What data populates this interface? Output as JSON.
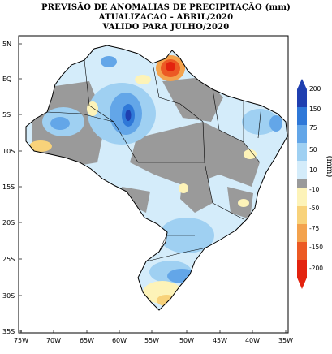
{
  "title": {
    "line1": "PREVISÃO DE ANOMALIAS DE PRECIPITAÇÃO (mm)",
    "line2": "ATUALIZACAO - ABRIL/2020",
    "line3": "VALIDO PARA JULHO/2020"
  },
  "axes": {
    "lat_labels": [
      "5N",
      "EQ",
      "5S",
      "10S",
      "15S",
      "20S",
      "25S",
      "30S",
      "35S"
    ],
    "lon_labels": [
      "75W",
      "70W",
      "65W",
      "60W",
      "55W",
      "50W",
      "45W",
      "40W",
      "35W"
    ]
  },
  "colorbar": {
    "unit": "(mm)",
    "labels": [
      "200",
      "150",
      "75",
      "50",
      "10",
      "-10",
      "-50",
      "-75",
      "-150",
      "-200"
    ],
    "colors": {
      "c200": "#1f3fb0",
      "c150": "#2f78d8",
      "c75": "#63a6e8",
      "c50": "#9fd0f2",
      "c10": "#d4ecfa",
      "c0": "#9a9a9a",
      "cn10": "#fdf3b8",
      "cn50": "#f8d27a",
      "cn75": "#f3a24d",
      "cn150": "#ec5a24",
      "cn200": "#e3230f"
    }
  }
}
